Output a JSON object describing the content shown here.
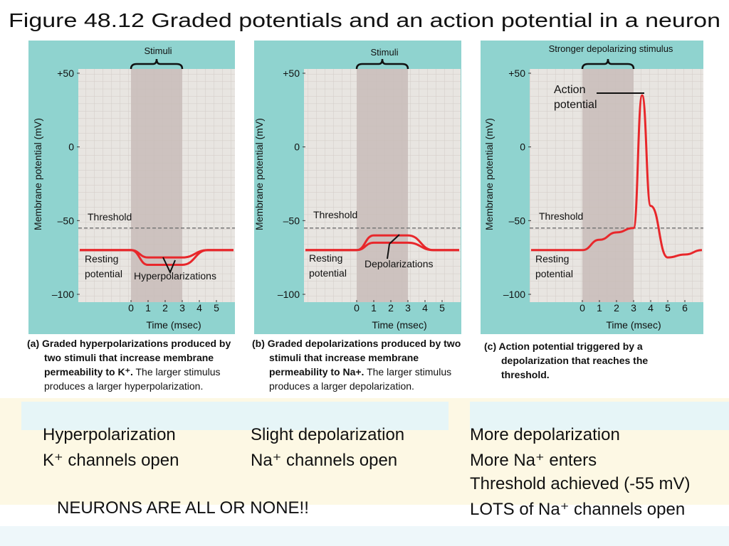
{
  "title": "Figure 48.12 Graded potentials and an action potential in a neuron",
  "chart_data": [
    {
      "type": "line",
      "ylabel": "Membrane potential (mV)",
      "xlabel": "Time (msec)",
      "stimulus_label": "Stimuli",
      "shaded": [
        0,
        3
      ],
      "threshold": -55,
      "threshold_label": "Threshold",
      "annotations": [
        [
          "Resting",
          "potential"
        ],
        [
          "Hyperpolarizations"
        ]
      ],
      "x": [
        -3,
        0,
        1,
        3,
        4.5,
        6
      ],
      "series": [
        {
          "color": "#e8272b",
          "values": [
            -70,
            -70,
            -75,
            -75,
            -70,
            -70
          ]
        },
        {
          "color": "#e8272b",
          "values": [
            -70,
            -70,
            -80,
            -80,
            -70,
            -70
          ]
        }
      ],
      "xlim": [
        -3,
        6
      ],
      "xticks": [
        0,
        1,
        2,
        3,
        4,
        5
      ],
      "ylim": [
        -100,
        50
      ],
      "yticks": [
        {
          "value": 50,
          "label": "+50"
        },
        0,
        {
          "value": -50,
          "label": "–50"
        },
        {
          "value": -100,
          "label": "–100"
        }
      ]
    },
    {
      "type": "line",
      "ylabel": "Membrane potential (mV)",
      "xlabel": "Time (msec)",
      "stimulus_label": "Stimuli",
      "shaded": [
        0,
        3
      ],
      "threshold": -55,
      "threshold_label": "Threshold",
      "annotations": [
        [
          "Resting",
          "potential"
        ],
        [
          "Depolarizations"
        ]
      ],
      "x": [
        -3,
        0,
        1,
        3,
        4.5,
        6
      ],
      "series": [
        {
          "color": "#e8272b",
          "values": [
            -70,
            -70,
            -65,
            -65,
            -70,
            -70
          ]
        },
        {
          "color": "#e8272b",
          "values": [
            -70,
            -70,
            -60,
            -60,
            -70,
            -70
          ]
        }
      ],
      "xlim": [
        -3,
        6
      ],
      "xticks": [
        0,
        1,
        2,
        3,
        4,
        5
      ],
      "ylim": [
        -100,
        50
      ],
      "yticks": [
        {
          "value": 50,
          "label": "+50"
        },
        0,
        {
          "value": -50,
          "label": "–50"
        },
        {
          "value": -100,
          "label": "–100"
        }
      ]
    },
    {
      "type": "line",
      "ylabel": "Membrane potential (mV)",
      "xlabel": "Time (msec)",
      "stimulus_label": "Stronger depolarizing stimulus",
      "shaded": [
        0,
        3
      ],
      "threshold": -55,
      "threshold_label": "Threshold",
      "annotations": [
        [
          "Resting",
          "potential"
        ],
        [
          "Action",
          "potential"
        ]
      ],
      "x": [
        -3,
        0,
        1,
        2,
        3,
        3.5,
        4,
        5,
        6,
        7
      ],
      "series": [
        {
          "color": "#e8272b",
          "values": [
            -70,
            -70,
            -63,
            -58,
            -55,
            35,
            -40,
            -75,
            -73,
            -70
          ]
        }
      ],
      "xlim": [
        -3,
        7
      ],
      "xticks": [
        0,
        1,
        2,
        3,
        4,
        5,
        6
      ],
      "ylim": [
        -100,
        50
      ],
      "yticks": [
        {
          "value": 50,
          "label": "+50"
        },
        0,
        {
          "value": -50,
          "label": "–50"
        },
        {
          "value": -100,
          "label": "–100"
        }
      ]
    }
  ],
  "captions": [
    {
      "bold": "(a) Graded hyperpolarizations produced by two stimuli that increase membrane permeability to K⁺.",
      "text": "The larger stimulus produces a larger hyperpolarization."
    },
    {
      "bold": "(b) Graded depolarizations produced by two stimuli that increase membrane permeability to Na+.",
      "text": "The larger stimulus produces a larger depolarization."
    },
    {
      "bold": "(c) Action potential triggered by a depolarization that reaches the threshold.",
      "text": ""
    }
  ],
  "notes": {
    "left": [
      "Hyperpolarization",
      "K⁺ channels open"
    ],
    "middle": [
      "Slight depolarization",
      "Na⁺ channels open"
    ],
    "right": [
      "More depolarization",
      "More Na⁺ enters",
      "Threshold achieved (-55 mV)",
      "LOTS of Na⁺ channels open"
    ],
    "footer": "NEURONS ARE ALL OR NONE!!"
  }
}
